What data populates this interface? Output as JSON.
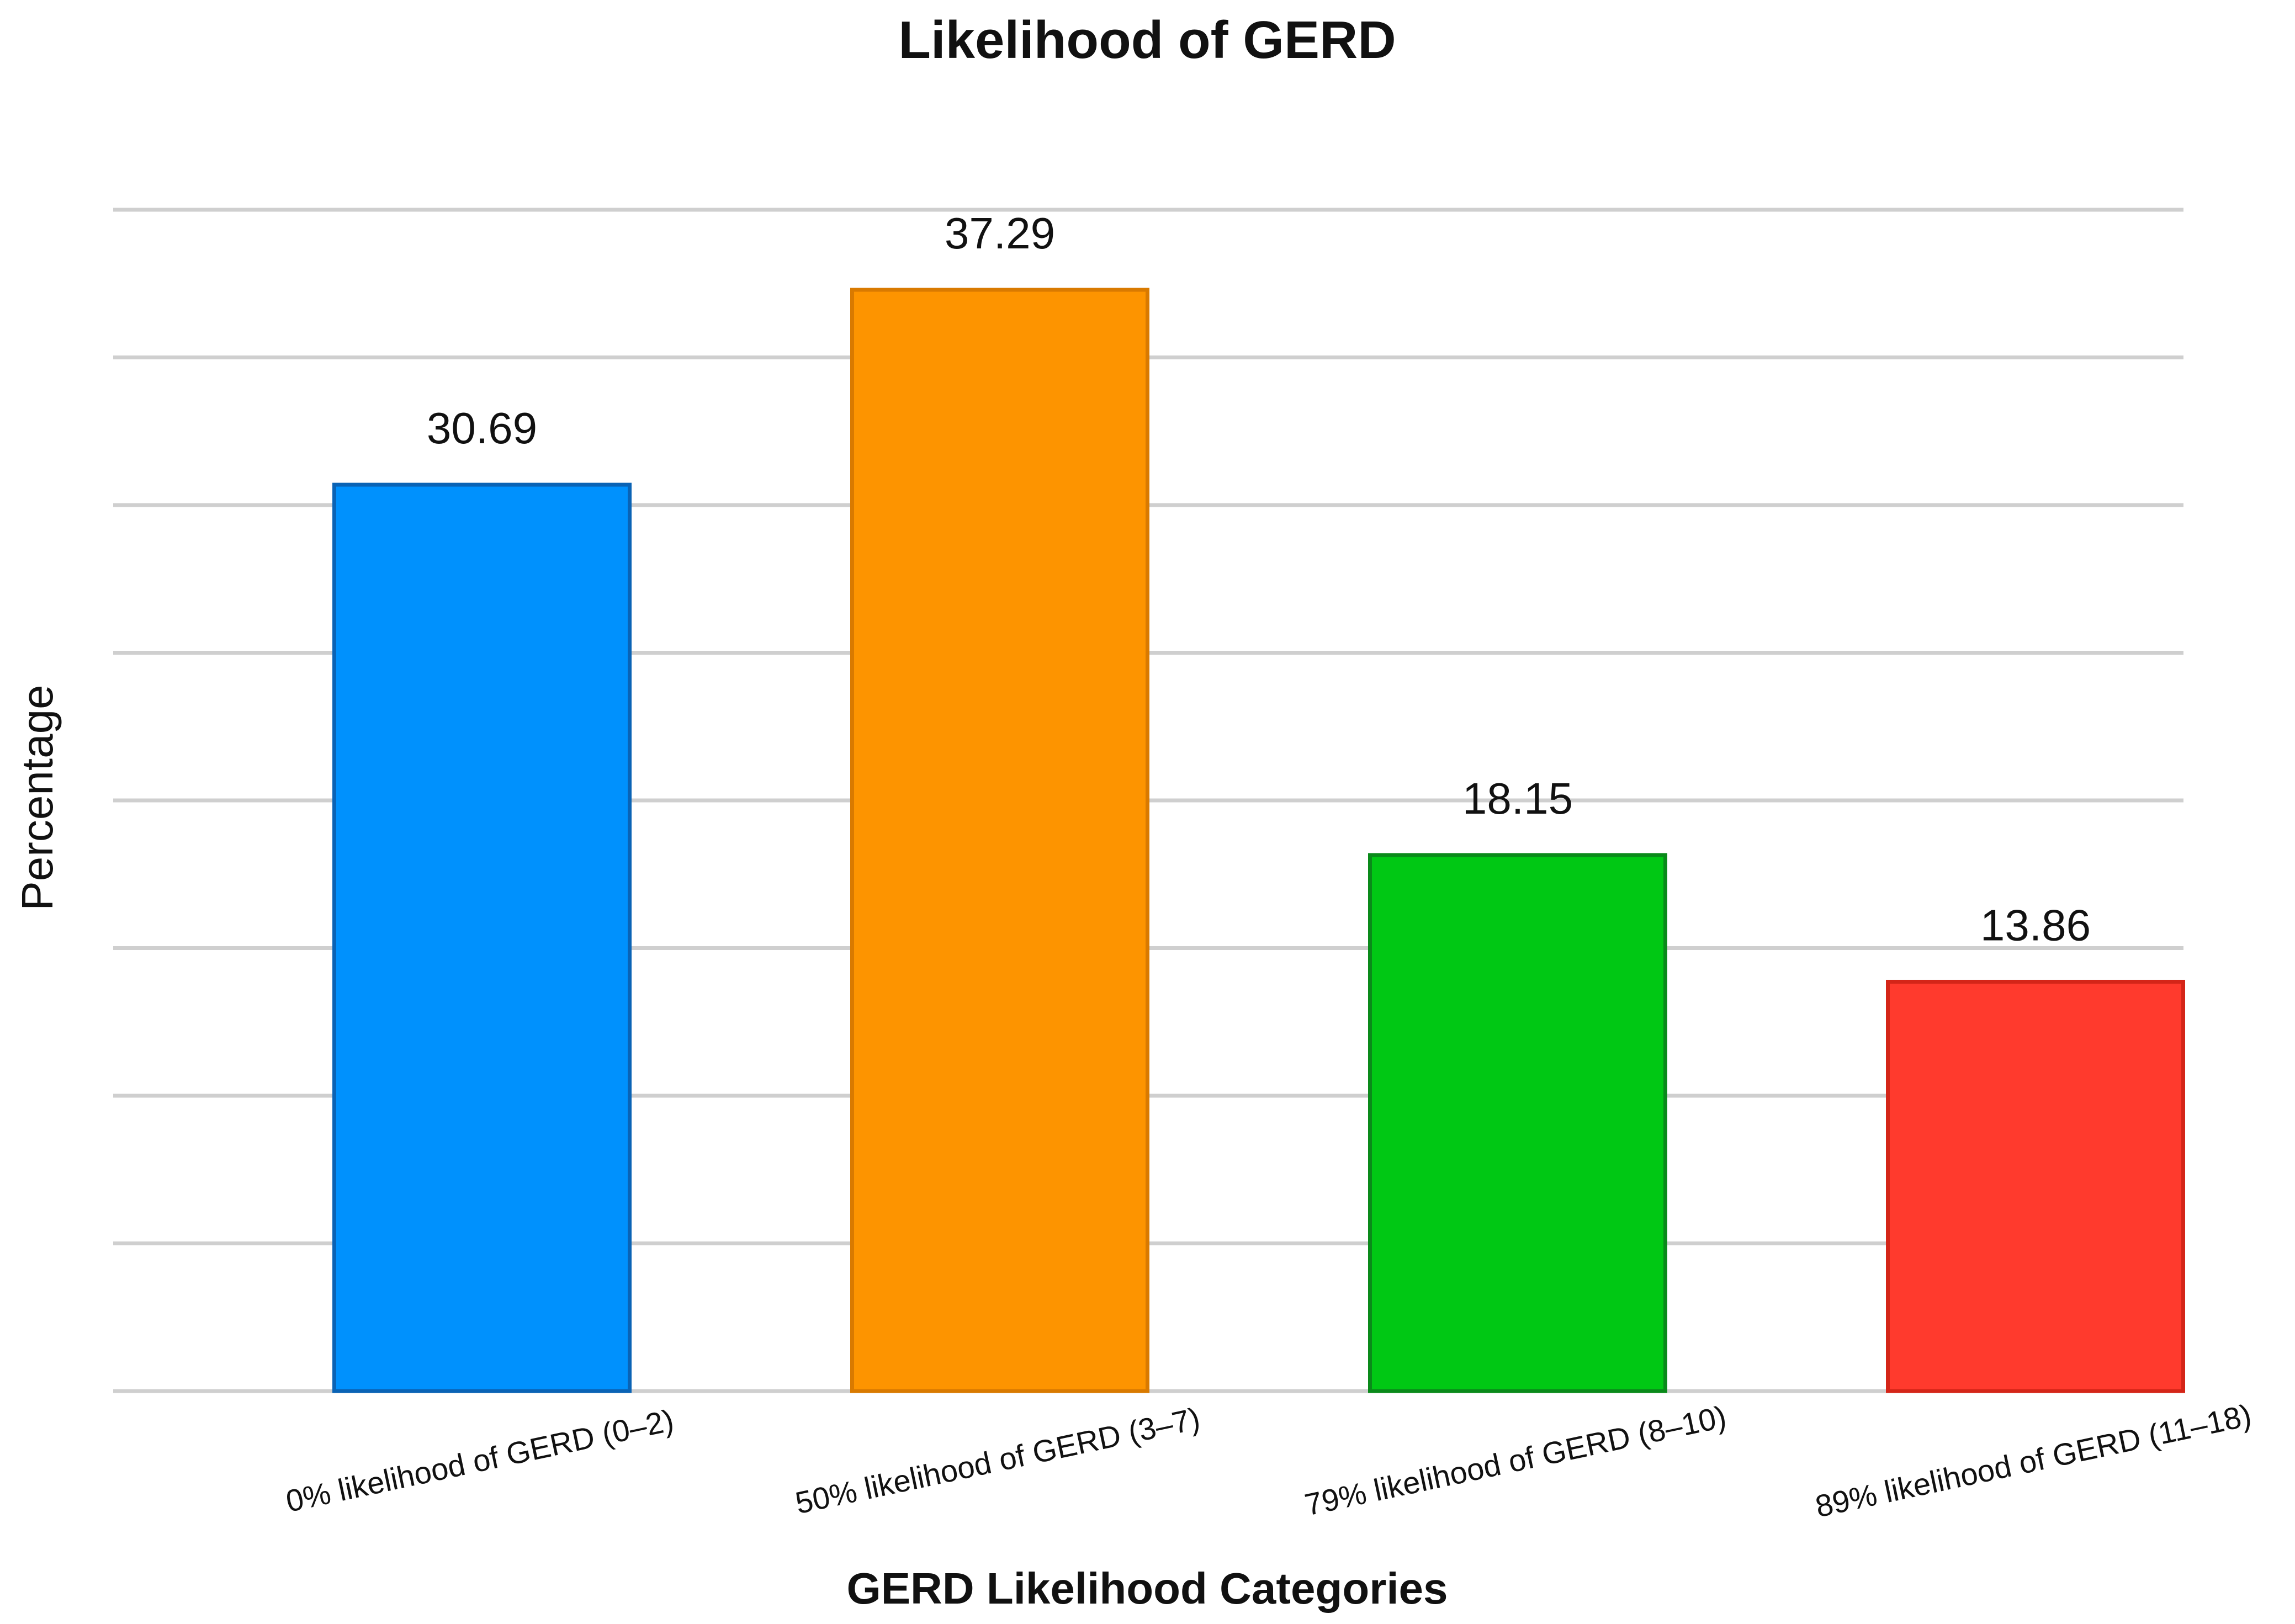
{
  "chart_data": {
    "type": "bar",
    "title": "Likelihood of GERD",
    "xlabel": "GERD Likelihood Categories",
    "ylabel": "Percentage",
    "categories": [
      "0% likelihood of GERD (0–2)",
      "50% likelihood of GERD (3–7)",
      "79% likelihood of GERD (8–10)",
      "89% likelihood of GERD (11–18)"
    ],
    "values": [
      30.69,
      37.29,
      18.15,
      13.86
    ],
    "value_labels": [
      "30.69",
      "37.29",
      "18.15",
      "13.86"
    ],
    "ylim": [
      0,
      40
    ],
    "y_tick_step": 5,
    "grid": true,
    "legend": "none",
    "colors": [
      "#0091fd",
      "#fd9400",
      "#00c814",
      "#ff3a2d"
    ],
    "border_colors": [
      "#0a63b5",
      "#d97a00",
      "#0a8a1a",
      "#d42518"
    ]
  }
}
